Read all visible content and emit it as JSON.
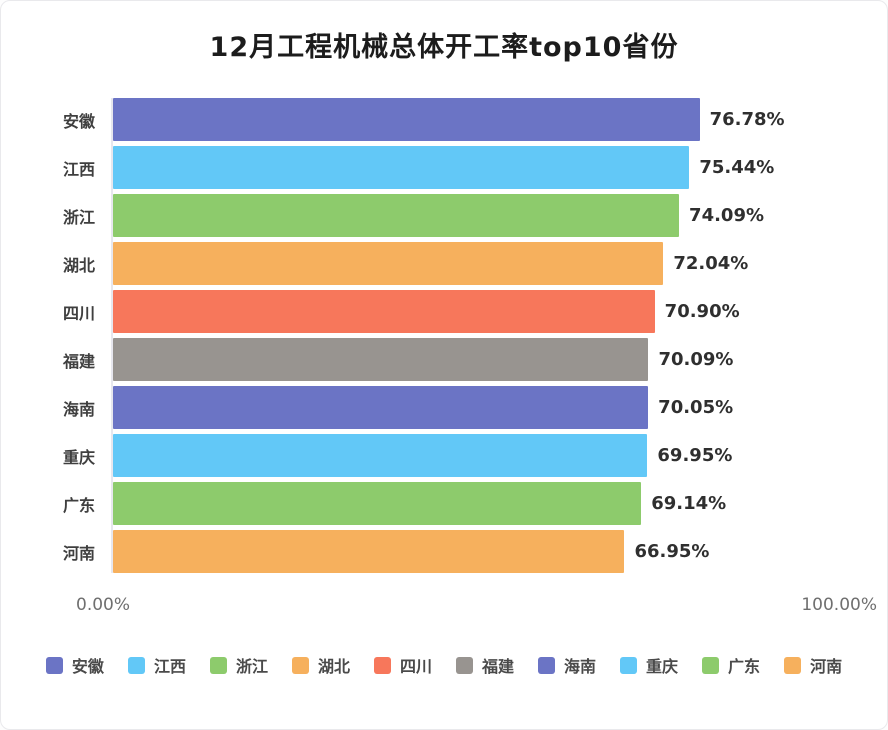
{
  "title": "12月工程机械总体开工率top10省份",
  "palette": {
    "purple": "#6B74C5",
    "blue": "#62C8F7",
    "green": "#8DCB6C",
    "orange": "#F6B05D",
    "red": "#F7775B",
    "gray": "#989490"
  },
  "chart_data": {
    "type": "bar",
    "orientation": "horizontal",
    "title": "12月工程机械总体开工率top10省份",
    "xlabel": "",
    "ylabel": "",
    "xlim": [
      0,
      100
    ],
    "x_tick_labels": [
      "0.00%",
      "100.00%"
    ],
    "grid": false,
    "legend_position": "bottom",
    "categories": [
      "安徽",
      "江西",
      "浙江",
      "湖北",
      "四川",
      "福建",
      "海南",
      "重庆",
      "广东",
      "河南"
    ],
    "values": [
      76.78,
      75.44,
      74.09,
      72.04,
      70.9,
      70.09,
      70.05,
      69.95,
      69.14,
      66.95
    ],
    "value_labels": [
      "76.78%",
      "75.44%",
      "74.09%",
      "72.04%",
      "70.90%",
      "70.09%",
      "70.05%",
      "69.95%",
      "69.14%",
      "66.95%"
    ],
    "bar_colors": [
      "#6B74C5",
      "#62C8F7",
      "#8DCB6C",
      "#F6B05D",
      "#F7775B",
      "#989490",
      "#6B74C5",
      "#62C8F7",
      "#8DCB6C",
      "#F6B05D"
    ],
    "legend": [
      {
        "label": "安徽",
        "color": "#6B74C5"
      },
      {
        "label": "江西",
        "color": "#62C8F7"
      },
      {
        "label": "浙江",
        "color": "#8DCB6C"
      },
      {
        "label": "湖北",
        "color": "#F6B05D"
      },
      {
        "label": "四川",
        "color": "#F7775B"
      },
      {
        "label": "福建",
        "color": "#989490"
      },
      {
        "label": "海南",
        "color": "#6B74C5"
      },
      {
        "label": "重庆",
        "color": "#62C8F7"
      },
      {
        "label": "广东",
        "color": "#8DCB6C"
      },
      {
        "label": "河南",
        "color": "#F6B05D"
      }
    ]
  },
  "axis": {
    "x_min_label": "0.00%",
    "x_max_label": "100.00%"
  }
}
